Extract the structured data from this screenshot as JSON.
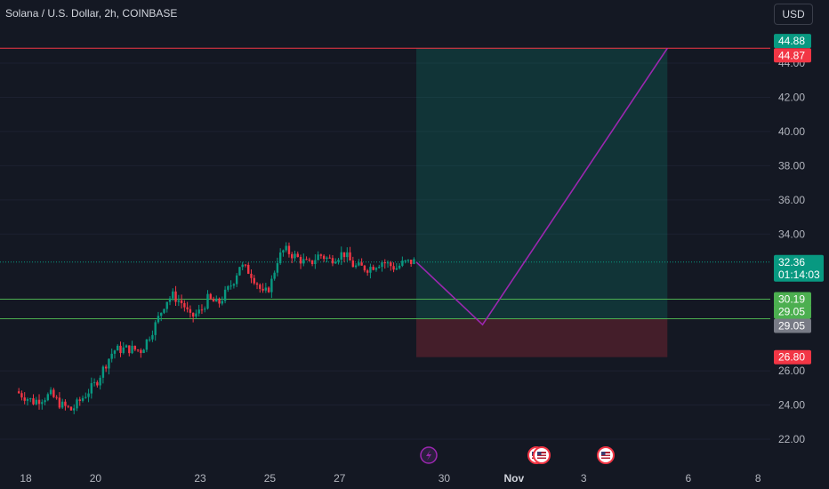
{
  "chart_title": "Solana / U.S. Dollar, 2h, COINBASE",
  "currency_button": "USD",
  "chart_data": {
    "type": "candlestick",
    "title": "Solana / U.S. Dollar, 2h, COINBASE",
    "ylim": [
      20.9,
      45.9
    ],
    "y_ticks": [
      "22.00",
      "24.00",
      "26.00",
      "34.00",
      "36.00",
      "38.00",
      "40.00",
      "42.00",
      "44.00"
    ],
    "x_ticks": [
      "18",
      "20",
      "23",
      "25",
      "27",
      "30",
      "Nov",
      "3",
      "6",
      "8"
    ],
    "price_path": [
      [
        17.8,
        24.8
      ],
      [
        18.3,
        24.2
      ],
      [
        18.8,
        24.6
      ],
      [
        19.1,
        24.0
      ],
      [
        19.4,
        23.7
      ],
      [
        19.7,
        24.4
      ],
      [
        20.1,
        25.3
      ],
      [
        20.4,
        26.5
      ],
      [
        20.6,
        27.2
      ],
      [
        21.0,
        27.3
      ],
      [
        21.4,
        27.2
      ],
      [
        21.8,
        28.7
      ],
      [
        22.1,
        30.1
      ],
      [
        22.3,
        30.4
      ],
      [
        22.6,
        29.9
      ],
      [
        22.8,
        29.1
      ],
      [
        23.1,
        29.5
      ],
      [
        23.3,
        30.2
      ],
      [
        23.6,
        29.9
      ],
      [
        23.9,
        30.8
      ],
      [
        24.1,
        31.5
      ],
      [
        24.2,
        32.2
      ],
      [
        24.5,
        31.8
      ],
      [
        24.7,
        31.2
      ],
      [
        24.9,
        30.4
      ],
      [
        25.1,
        31.0
      ],
      [
        25.3,
        32.5
      ],
      [
        25.5,
        33.1
      ],
      [
        25.8,
        32.7
      ],
      [
        26.2,
        32.2
      ],
      [
        26.5,
        32.8
      ],
      [
        26.8,
        32.5
      ],
      [
        27.2,
        32.9
      ],
      [
        27.5,
        32.1
      ],
      [
        27.9,
        32.0
      ],
      [
        28.3,
        32.4
      ],
      [
        28.7,
        32.0
      ],
      [
        28.9,
        32.3
      ],
      [
        29.2,
        32.4
      ]
    ],
    "current_price": "32.36",
    "countdown": "01:14:03",
    "price_labels": [
      {
        "price": 44.88,
        "label": "44.88",
        "color": "#089981"
      },
      {
        "price": 44.87,
        "label": "44.87",
        "color": "#f23645"
      },
      {
        "price": 30.19,
        "label": "30.19",
        "color": "#4caf50"
      },
      {
        "price": 29.05,
        "label": "29.05",
        "color": "#4caf50"
      },
      {
        "price": 29.05,
        "label": "29.05",
        "color": "#787b86"
      },
      {
        "price": 26.8,
        "label": "26.80",
        "color": "#f23645"
      }
    ],
    "horizontal_lines": [
      {
        "price": 44.87,
        "color": "#f23645"
      },
      {
        "price": 30.19,
        "color": "#4caf50"
      },
      {
        "price": 29.05,
        "color": "#4caf50"
      }
    ],
    "position": {
      "type": "long",
      "entry": 29.05,
      "target": 44.88,
      "stop": 26.8,
      "x_start": 29.2,
      "x_end": 36.4
    },
    "projection": [
      [
        29.2,
        32.36
      ],
      [
        31.1,
        28.7
      ],
      [
        36.4,
        44.87
      ]
    ],
    "colors": {
      "background": "#141823",
      "up": "#089981",
      "down": "#f23645",
      "grid": "#1c2030",
      "axis_text": "#b2b5be",
      "projection": "#9c27b0",
      "profit_zone": "rgba(8,153,129,0.22)",
      "loss_zone": "rgba(242,54,69,0.22)"
    },
    "event_icons": [
      "lightning-icon",
      "us-flag-icon",
      "us-flag-icon",
      "us-flag-icon"
    ]
  }
}
